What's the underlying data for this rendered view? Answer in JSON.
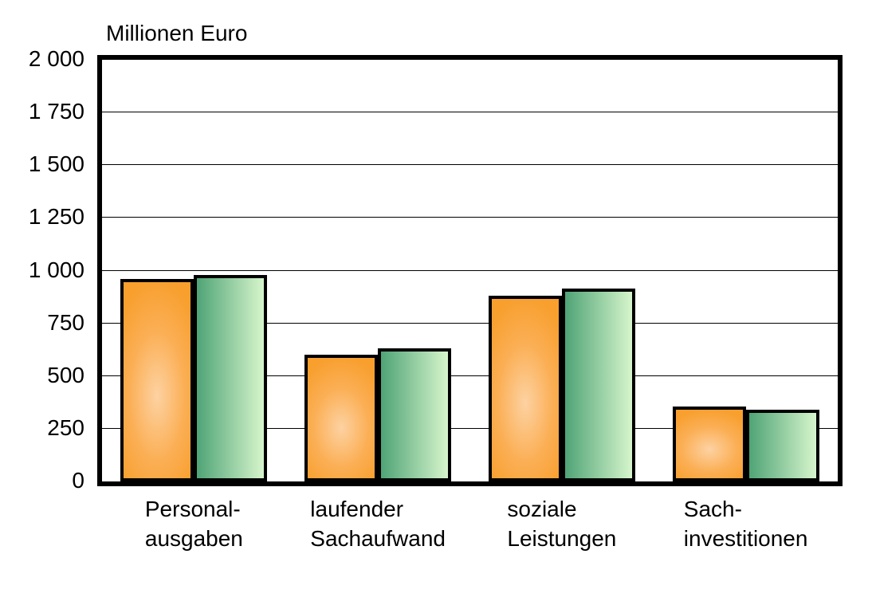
{
  "page": {
    "background_color": "#FFFFFF"
  },
  "chart_data": {
    "type": "bar",
    "title": "Millionen Euro",
    "categories": [
      "Personalausgaben",
      "laufender Sachaufwand",
      "soziale Leistungen",
      "Sachinvestitionen"
    ],
    "category_label_lines": [
      [
        "Personal-",
        "ausgaben"
      ],
      [
        "laufender",
        "Sachaufwand"
      ],
      [
        "soziale",
        "Leistungen"
      ],
      [
        "Sach-",
        "investitionen"
      ]
    ],
    "series": [
      {
        "name": "orange",
        "values": [
          960,
          600,
          880,
          355
        ]
      },
      {
        "name": "green",
        "values": [
          980,
          630,
          915,
          340
        ]
      }
    ],
    "ylim": [
      0,
      2000
    ],
    "ytick_step": 250,
    "ytick_labels": [
      "2 000",
      "1 750",
      "1 500",
      "1 250",
      "1 000",
      "750",
      "500",
      "250",
      "0"
    ],
    "grid": true,
    "legend": "none",
    "colors": {
      "orange_edge": "#F89F2E",
      "orange_mid": "#FBAF55",
      "orange_center": "#FDD2A2",
      "green_dark": "#4FA476",
      "green_light": "#D7F5CC",
      "outline": "#000000",
      "axis": "#000000",
      "gridline": "#000000"
    }
  }
}
